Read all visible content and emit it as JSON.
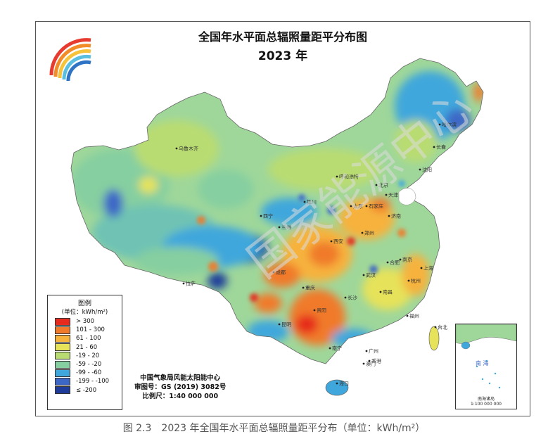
{
  "title": "全国年水平面总辐照量距平分布图",
  "year": "2023 年",
  "legend": {
    "title": "图例",
    "unit": "(单位：kWh/m²)",
    "items": [
      {
        "label": "> 300",
        "color": "#e62a1e"
      },
      {
        "label": "101 - 300",
        "color": "#f07a2a"
      },
      {
        "label": "61 - 100",
        "color": "#f6b23c"
      },
      {
        "label": "21 - 60",
        "color": "#e6e25a"
      },
      {
        "label": "-19 - 20",
        "color": "#b9dc72"
      },
      {
        "label": "-59 - -20",
        "color": "#86cfa0"
      },
      {
        "label": "-99 - -60",
        "color": "#3fa7dc"
      },
      {
        "label": "-199 - -100",
        "color": "#3c67c6"
      },
      {
        "label": "≤ -200",
        "color": "#1f3c9a"
      }
    ]
  },
  "credits": {
    "org": "中国气象局风能太阳能中心",
    "review": "审图号：GS (2019) 3082号",
    "scale": "比例尺：1:40 000 000"
  },
  "inset": {
    "label": "南海诸岛",
    "scale": "1:100 000 000",
    "sea": "南 海"
  },
  "caption": "图 2.3　2023 年全国年水平面总辐照量距平分布（单位：kWh/m²）",
  "watermark": "国家能源中心",
  "cities": [
    "乌鲁木齐",
    "拉萨",
    "西宁",
    "兰州",
    "银川",
    "呼和浩特",
    "北京",
    "天津",
    "石家庄",
    "太原",
    "济南",
    "郑州",
    "西安",
    "成都",
    "重庆",
    "贵阳",
    "昆明",
    "南宁",
    "广州",
    "长沙",
    "武汉",
    "南昌",
    "福州",
    "杭州",
    "南京",
    "合肥",
    "上海",
    "沈阳",
    "长春",
    "哈尔滨",
    "海口",
    "台北",
    "香港",
    "澳门"
  ]
}
